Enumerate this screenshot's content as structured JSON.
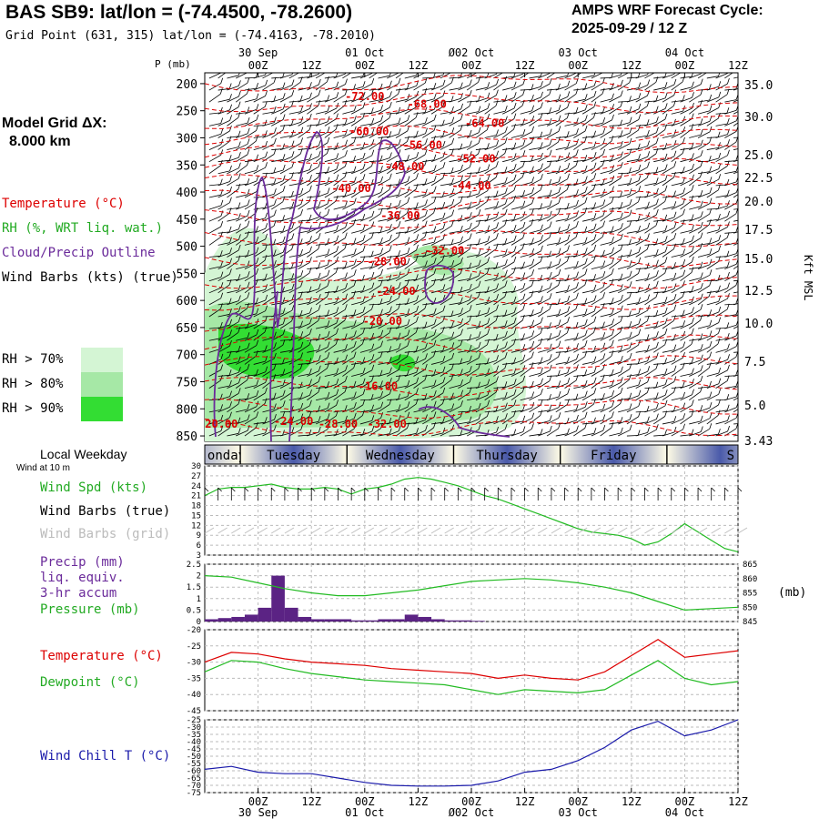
{
  "header": {
    "title": "BAS SB9:  lat/lon = (-74.4500, -78.2600)",
    "subtitle": "Grid Point (631, 315) lat/lon = (-74.4163, -78.2010)",
    "cycle_line1": "AMPS WRF Forecast Cycle:",
    "cycle_line2": "2025-09-29 / 12  Z",
    "grid_line1": "Model Grid ΔX:",
    "grid_line2": "8.000 km"
  },
  "legend": {
    "temperature": "Temperature (°C)",
    "rh": "RH (%, WRT liq. wat.)",
    "cloud": "Cloud/Precip Outline",
    "wind_barbs": "Wind Barbs (kts) (true)",
    "rh70": "RH > 70%",
    "rh80": "RH > 80%",
    "rh90": "RH > 90%"
  },
  "colors": {
    "rh70": "#d4f5d4",
    "rh80": "#a6e8a6",
    "rh90": "#33dd33",
    "temperature": "#dd0000",
    "cloud": "#6a2a9a",
    "green": "#22bb22",
    "blue": "#1a1aaa",
    "weekday_band": "#4a5aaa"
  },
  "time_axis": {
    "ticks": [
      "00Z",
      "12Z",
      "00Z",
      "12Z",
      "00Z",
      "12Z",
      "00Z",
      "12Z",
      "00Z",
      "12Z"
    ],
    "dates": [
      "30 Sep",
      "01 Oct",
      "Ø02 Oct",
      "03 Oct",
      "04 Oct"
    ],
    "range_hours": [
      0,
      120
    ]
  },
  "pressure_axis": {
    "label": "P (mb)",
    "ticks": [
      "200",
      "250",
      "300",
      "350",
      "400",
      "450",
      "500",
      "550",
      "600",
      "650",
      "700",
      "750",
      "800",
      "850"
    ],
    "kft_ticks": [
      "35.0",
      "30.0",
      "25.0",
      "22.5",
      "20.0",
      "17.5",
      "15.0",
      "12.5",
      "10.0",
      "7.5",
      "5.0",
      "3.43"
    ],
    "kft_label": "Kft MSL"
  },
  "weekdays": {
    "title": "Local Weekday",
    "labels": [
      "onday",
      "Tuesday",
      "Wednesday",
      "Thursday",
      "Friday",
      "S"
    ]
  },
  "panels": {
    "wind": {
      "subtitle": "Wind at 10 m",
      "label_spd": "Wind Spd (kts)",
      "label_true": "Wind Barbs (true)",
      "label_grid": "Wind Barbs (grid)",
      "ticks": [
        "30",
        "27",
        "24",
        "21",
        "18",
        "15",
        "12",
        "9",
        "6",
        "3"
      ]
    },
    "precip": {
      "label1": "Precip (mm)",
      "label2": "liq. equiv.",
      "label3": "3-hr accum",
      "label4": "Pressure (mb)",
      "left_ticks": [
        "2.5",
        "2",
        "1.5",
        "1",
        "0.5",
        "0"
      ],
      "right_ticks": [
        "865",
        "860",
        "855",
        "850",
        "845"
      ],
      "unit": "(mb)"
    },
    "temp": {
      "label_t": "Temperature (°C)",
      "label_td": "Dewpoint (°C)",
      "ticks": [
        "-20",
        "-25",
        "-30",
        "-35",
        "-40",
        "-45"
      ]
    },
    "chill": {
      "label": "Wind Chill T (°C)",
      "ticks": [
        "-25",
        "-30",
        "-35",
        "-40",
        "-45",
        "-50",
        "-55",
        "-60",
        "-65",
        "-70",
        "-75"
      ]
    }
  },
  "chart_data": [
    {
      "type": "heatmap",
      "x": "forecast hour (0 = 2025-09-29 12Z)",
      "ylim": [
        850,
        200
      ],
      "temperature_contour_labels": [
        "-72.00",
        "-68.00",
        "-64.00",
        "-60.00",
        "-56.00",
        "-52.00",
        "-48.00",
        "-44.00",
        "-40.00",
        "-36.00",
        "-32.00",
        "-28.00",
        "-24.00",
        "-20.00",
        "-16.00",
        "-20.00",
        "-24.00",
        "-28.00",
        "-32.00"
      ],
      "temperature_labels": [
        {
          "text": "-72.00",
          "hour": 36,
          "p": 230
        },
        {
          "text": "-68.00",
          "hour": 50,
          "p": 245
        },
        {
          "text": "-64.00",
          "hour": 63,
          "p": 280
        },
        {
          "text": "-60.00",
          "hour": 37,
          "p": 295
        },
        {
          "text": "-56.00",
          "hour": 49,
          "p": 320
        },
        {
          "text": "-52.00",
          "hour": 61,
          "p": 345
        },
        {
          "text": "-48.00",
          "hour": 45,
          "p": 360
        },
        {
          "text": "-44.00",
          "hour": 60,
          "p": 395
        },
        {
          "text": "-40.00",
          "hour": 33,
          "p": 400
        },
        {
          "text": "-36.00",
          "hour": 44,
          "p": 450
        },
        {
          "text": "-32.00",
          "hour": 54,
          "p": 515
        },
        {
          "text": "-28.00",
          "hour": 41,
          "p": 535
        },
        {
          "text": "-24.00",
          "hour": 43,
          "p": 590
        },
        {
          "text": "-20.00",
          "hour": 40,
          "p": 645
        },
        {
          "text": "-16.00",
          "hour": 39,
          "p": 765
        },
        {
          "text": "-20.00",
          "hour": 3,
          "p": 835
        },
        {
          "text": "-24.00",
          "hour": 20,
          "p": 830
        },
        {
          "text": "-28.00",
          "hour": 30,
          "p": 835
        },
        {
          "text": "-32.00",
          "hour": 41,
          "p": 835
        }
      ]
    },
    {
      "type": "line",
      "name": "10 m wind speed",
      "ylim": [
        3,
        30
      ],
      "x": [
        0,
        3,
        6,
        9,
        12,
        15,
        18,
        21,
        24,
        27,
        30,
        33,
        36,
        39,
        42,
        45,
        48,
        51,
        54,
        57,
        60,
        63,
        66,
        69,
        72,
        75,
        78,
        81,
        84,
        87,
        90,
        93,
        96,
        99,
        102,
        105,
        108,
        111,
        114,
        117,
        120
      ],
      "y": [
        21,
        23,
        23.5,
        23.5,
        24,
        24.5,
        23.5,
        23,
        23,
        23.5,
        23,
        21.5,
        23,
        23.5,
        24.5,
        26,
        26.5,
        26,
        25,
        24,
        22.5,
        21,
        20,
        18.5,
        17,
        15.5,
        14,
        12.5,
        11,
        10,
        9.5,
        9,
        8,
        6,
        7,
        9.5,
        12.5,
        10,
        7.5,
        5,
        4
      ]
    },
    {
      "type": "bar",
      "name": "3-hr precip (mm)",
      "ylim": [
        0,
        2.5
      ],
      "x": [
        0,
        3,
        6,
        9,
        12,
        15,
        18,
        21,
        24,
        27,
        30,
        33,
        36,
        39,
        42,
        45,
        48,
        51,
        54,
        57,
        60
      ],
      "values": [
        0.1,
        0.15,
        0.2,
        0.3,
        0.6,
        2.0,
        0.6,
        0.2,
        0.1,
        0.1,
        0.1,
        0.05,
        0.05,
        0.1,
        0.1,
        0.3,
        0.2,
        0.1,
        0.05,
        0.05,
        0.03
      ]
    },
    {
      "type": "line",
      "name": "surface pressure (mb)",
      "ylim": [
        845,
        865
      ],
      "x": [
        0,
        6,
        12,
        18,
        24,
        30,
        36,
        42,
        48,
        54,
        60,
        66,
        72,
        78,
        84,
        90,
        96,
        102,
        108,
        114,
        120
      ],
      "y": [
        861,
        860.5,
        858.5,
        856.5,
        855,
        854,
        854,
        855,
        856,
        857.5,
        859,
        859.5,
        860,
        859.5,
        858.5,
        857,
        855,
        852,
        849,
        849.5,
        850
      ]
    },
    {
      "type": "line",
      "name": "2 m temperature",
      "ylim": [
        -45,
        -20
      ],
      "x": [
        0,
        6,
        12,
        18,
        24,
        30,
        36,
        42,
        48,
        54,
        60,
        66,
        72,
        78,
        84,
        90,
        96,
        102,
        108,
        114,
        120
      ],
      "y": [
        -30,
        -27,
        -27.5,
        -29,
        -30,
        -30.5,
        -31,
        -32,
        -32.5,
        -33,
        -33.5,
        -35,
        -34,
        -35,
        -35.5,
        -33,
        -28,
        -23,
        -28.5,
        -27.5,
        -26.5
      ]
    },
    {
      "type": "line",
      "name": "2 m dewpoint",
      "ylim": [
        -45,
        -20
      ],
      "x": [
        0,
        6,
        12,
        18,
        24,
        30,
        36,
        42,
        48,
        54,
        60,
        66,
        72,
        78,
        84,
        90,
        96,
        102,
        108,
        114,
        120
      ],
      "y": [
        -33,
        -29.5,
        -30,
        -32,
        -33.5,
        -34.5,
        -35.5,
        -36,
        -36.5,
        -37,
        -38.5,
        -40,
        -38.5,
        -39,
        -39.5,
        -38.5,
        -34,
        -29.5,
        -35,
        -37,
        -36
      ]
    },
    {
      "type": "line",
      "name": "wind chill",
      "ylim": [
        -75,
        -25
      ],
      "x": [
        0,
        6,
        12,
        18,
        24,
        30,
        36,
        42,
        48,
        54,
        60,
        66,
        72,
        78,
        84,
        90,
        96,
        102,
        108,
        114,
        120
      ],
      "y": [
        -59,
        -57,
        -61,
        -62,
        -62,
        -65,
        -68,
        -70,
        -70.5,
        -70.5,
        -70,
        -67,
        -61,
        -59,
        -53,
        -44,
        -32,
        -26,
        -36,
        -32,
        -25
      ]
    }
  ]
}
